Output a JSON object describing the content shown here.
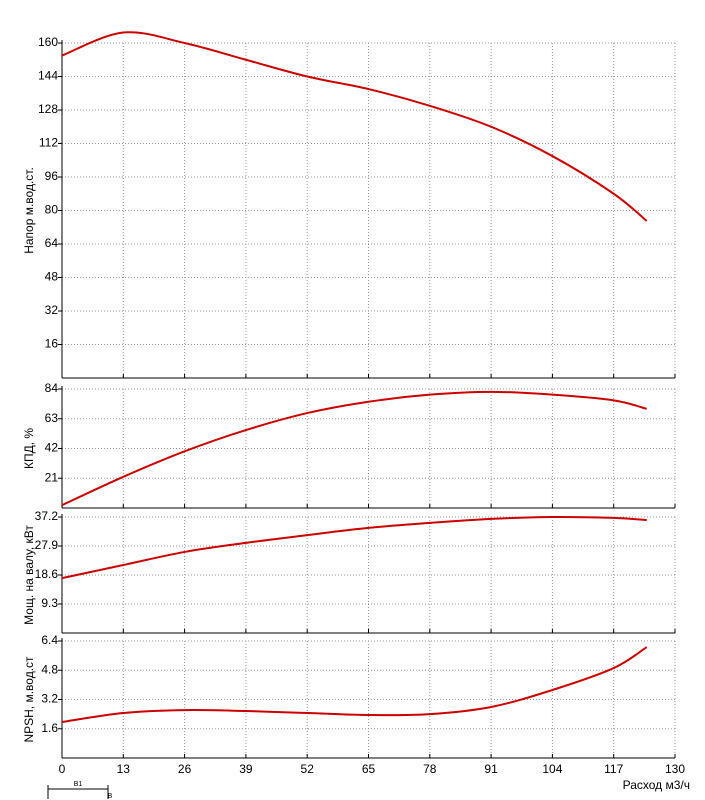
{
  "chart_data": [
    {
      "type": "line",
      "ylabel": "Напор м.вод.ст.",
      "x": [
        0,
        13,
        26,
        39,
        52,
        65,
        78,
        91,
        104,
        117,
        124
      ],
      "series": [
        {
          "color": "#cc0000",
          "values": [
            154,
            165,
            160,
            152,
            144,
            138,
            130,
            120,
            106,
            88,
            75
          ]
        }
      ],
      "ylim": [
        0,
        160
      ],
      "yticks": [
        16,
        32,
        48,
        64,
        80,
        96,
        112,
        128,
        144,
        160
      ],
      "xlim": [
        0,
        130
      ],
      "grid": true
    },
    {
      "type": "line",
      "ylabel": "КПД, %",
      "x": [
        0,
        13,
        26,
        39,
        52,
        65,
        78,
        91,
        104,
        117,
        124
      ],
      "series": [
        {
          "color": "#cc0000",
          "values": [
            2,
            22,
            40,
            55,
            67,
            75,
            80,
            82,
            80,
            76,
            70
          ]
        }
      ],
      "ylim": [
        0,
        84
      ],
      "yticks": [
        21,
        42,
        63,
        84
      ],
      "xlim": [
        0,
        130
      ],
      "grid": true
    },
    {
      "type": "line",
      "ylabel": "Мощ. на валу, кВт",
      "x": [
        0,
        13,
        26,
        39,
        52,
        65,
        78,
        91,
        104,
        117,
        124
      ],
      "series": [
        {
          "color": "#cc0000",
          "values": [
            17.6,
            21.8,
            26,
            28.9,
            31.4,
            33.7,
            35.3,
            36.6,
            37.2,
            36.9,
            36.2
          ]
        }
      ],
      "ylim": [
        0,
        37.2
      ],
      "yticks": [
        9.3,
        18.6,
        27.9,
        37.2
      ],
      "xlim": [
        0,
        130
      ],
      "grid": true
    },
    {
      "type": "line",
      "ylabel": "NPSH, м.вод.ст",
      "xlabel": "Расход м3/ч",
      "x": [
        0,
        13,
        26,
        39,
        52,
        65,
        78,
        91,
        104,
        117,
        124
      ],
      "series": [
        {
          "color": "#cc0000",
          "values": [
            1.97,
            2.46,
            2.62,
            2.57,
            2.46,
            2.35,
            2.4,
            2.79,
            3.72,
            4.92,
            6.07
          ]
        }
      ],
      "ylim": [
        0,
        6.4
      ],
      "yticks": [
        1.6,
        3.2,
        4.8,
        6.4
      ],
      "xlim": [
        0,
        130
      ],
      "xticks": [
        0,
        13,
        26,
        39,
        52,
        65,
        78,
        91,
        104,
        117,
        130
      ],
      "grid": true,
      "annotations": [
        "B1",
        "B"
      ]
    }
  ]
}
